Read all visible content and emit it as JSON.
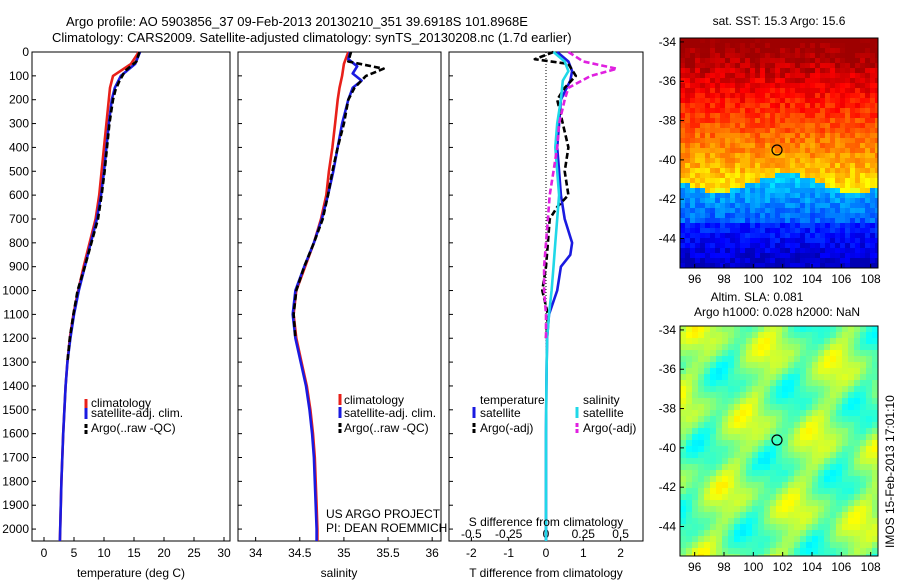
{
  "header": {
    "line1": "Argo profile: AO 5903856_37 09-Feb-2013 20130210_351 39.6918S 101.8968E",
    "line2": "Climatology: CARS2009. Satellite-adjusted climatology: synTS_20130208.nc (1.7d earlier)"
  },
  "colors": {
    "climatology": "#e8201a",
    "satellite_temp": "#1a1ae0",
    "argo": "#000000",
    "satellite_sal": "#20d8e8",
    "argo_sal": "#e020e0"
  },
  "credits": {
    "line1": "US ARGO PROJECT",
    "line2": "PI: DEAN ROEMMICH"
  },
  "sst_map": {
    "title": "sat. SST: 15.3  Argo: 15.6"
  },
  "sla_map": {
    "title1": "Altim. SLA: 0.081",
    "title2": "Argo h1000: 0.028 h2000: NaN"
  },
  "watermark": "IMOS 15-Feb-2013 17:01:10",
  "chart_data": [
    {
      "type": "line",
      "xlabel": "temperature (deg C)",
      "ylabel": "",
      "xlim": [
        -2,
        31
      ],
      "ylim": [
        2050,
        0
      ],
      "xticks": [
        0,
        5,
        10,
        15,
        20,
        25,
        30
      ],
      "yticks": [
        0,
        100,
        200,
        300,
        400,
        500,
        600,
        700,
        800,
        900,
        1000,
        1100,
        1200,
        1300,
        1400,
        1500,
        1600,
        1700,
        1800,
        1900,
        2000
      ],
      "legend": {
        "position": "lower-middle",
        "entries": [
          "climatology",
          "satellite-adj. clim.",
          "Argo(..raw -QC)"
        ]
      },
      "series": [
        {
          "name": "climatology",
          "color": "#e8201a",
          "style": "solid",
          "y": [
            0,
            50,
            100,
            150,
            200,
            300,
            400,
            500,
            600,
            700,
            800,
            900,
            1000,
            1100,
            1200,
            1300,
            1400,
            1500,
            1600,
            1700,
            1800,
            1900,
            2000,
            2050
          ],
          "x": [
            15.8,
            14.5,
            11.5,
            11.0,
            10.8,
            10.4,
            10.0,
            9.6,
            9.2,
            8.6,
            7.6,
            6.6,
            5.7,
            4.9,
            4.3,
            3.9,
            3.6,
            3.4,
            3.2,
            3.05,
            2.9,
            2.8,
            2.7,
            2.65
          ]
        },
        {
          "name": "satellite-adj. clim.",
          "color": "#1a1ae0",
          "style": "solid",
          "y": [
            0,
            50,
            100,
            150,
            200,
            300,
            400,
            500,
            600,
            700,
            800,
            900,
            1000,
            1100,
            1200,
            1300,
            1400,
            1500,
            1600,
            1700,
            1800,
            1900,
            2000,
            2050
          ],
          "x": [
            16.0,
            15.2,
            12.8,
            11.8,
            11.3,
            10.8,
            10.4,
            10.0,
            9.5,
            8.8,
            7.8,
            6.8,
            5.8,
            5.0,
            4.4,
            3.9,
            3.6,
            3.4,
            3.2,
            3.05,
            2.9,
            2.8,
            2.7,
            2.65
          ]
        },
        {
          "name": "Argo(..raw -QC)",
          "color": "#000000",
          "style": "dashed",
          "y": [
            0,
            40,
            80,
            120,
            160,
            200,
            300,
            400,
            500,
            600,
            700,
            800,
            900,
            1000,
            1100,
            1200,
            1300
          ],
          "x": [
            15.9,
            15.4,
            13.5,
            12.6,
            11.9,
            11.5,
            10.9,
            10.5,
            10.1,
            9.6,
            9.0,
            7.9,
            6.8,
            5.6,
            4.9,
            4.3,
            3.9
          ]
        }
      ]
    },
    {
      "type": "line",
      "xlabel": "salinity",
      "ylabel": "",
      "xlim": [
        33.8,
        36.1
      ],
      "ylim": [
        2050,
        0
      ],
      "xticks": [
        34,
        34.5,
        35,
        35.5,
        36
      ],
      "legend": {
        "position": "lower-right",
        "entries": [
          "climatology",
          "satellite-adj. clim.",
          "Argo(..raw -QC)"
        ]
      },
      "series": [
        {
          "name": "climatology",
          "color": "#e8201a",
          "style": "solid",
          "y": [
            0,
            50,
            100,
            150,
            200,
            300,
            400,
            500,
            600,
            700,
            800,
            900,
            1000,
            1100,
            1200,
            1300,
            1400,
            1500,
            1600,
            1700,
            1800,
            1900,
            2000,
            2050
          ],
          "x": [
            35.05,
            35.0,
            34.98,
            34.95,
            34.93,
            34.9,
            34.87,
            34.83,
            34.8,
            34.74,
            34.66,
            34.56,
            34.46,
            34.43,
            34.46,
            34.52,
            34.58,
            34.62,
            34.65,
            34.67,
            34.68,
            34.69,
            34.7,
            34.7
          ]
        },
        {
          "name": "satellite-adj. clim.",
          "color": "#1a1ae0",
          "style": "solid",
          "y": [
            0,
            30,
            60,
            90,
            120,
            150,
            200,
            300,
            400,
            500,
            600,
            700,
            800,
            900,
            1000,
            1100,
            1200,
            1300,
            1400,
            1500,
            1600,
            1700,
            1800,
            1900,
            2000,
            2050
          ],
          "x": [
            35.07,
            35.05,
            35.15,
            35.1,
            35.2,
            35.1,
            35.05,
            34.98,
            34.93,
            34.88,
            34.82,
            34.75,
            34.66,
            34.55,
            34.45,
            34.42,
            34.45,
            34.51,
            34.57,
            34.61,
            34.64,
            34.66,
            34.67,
            34.68,
            34.69,
            34.69
          ]
        },
        {
          "name": "Argo(..raw -QC)",
          "color": "#000000",
          "style": "dashed",
          "y": [
            0,
            40,
            70,
            100,
            150,
            200,
            300,
            400,
            500,
            600,
            700,
            800,
            900,
            1000,
            1100,
            1200
          ],
          "x": [
            35.08,
            35.05,
            35.45,
            35.25,
            35.12,
            35.05,
            35.0,
            34.93,
            34.87,
            34.82,
            34.76,
            34.66,
            34.55,
            34.46,
            34.43,
            34.45
          ]
        }
      ]
    },
    {
      "type": "line",
      "xlabel": "T difference from climatology",
      "secondary_xlabel": "S difference from climatology",
      "xlim": [
        -2.6,
        2.6
      ],
      "ylim": [
        2050,
        0
      ],
      "xticks": [
        -2,
        -1,
        0,
        1,
        2
      ],
      "secondary_xticks": [
        "-0.5",
        "-0.25",
        "0",
        "0.25",
        "0.5"
      ],
      "legend": {
        "position": "lower-middle",
        "groups": [
          {
            "title": "temperature",
            "entries": [
              "satellite",
              "Argo(-adj)"
            ]
          },
          {
            "title": "salinity",
            "entries": [
              "satellite",
              "Argo(-adj)"
            ]
          }
        ]
      },
      "series": [
        {
          "name": "temperature satellite",
          "color": "#1a1ae0",
          "style": "solid",
          "y": [
            0,
            40,
            80,
            120,
            200,
            300,
            400,
            500,
            600,
            700,
            800,
            850,
            900,
            1000,
            1100,
            1200,
            1300,
            1400,
            1600,
            1800,
            2000,
            2050
          ],
          "x": [
            0.3,
            0.6,
            0.7,
            0.65,
            0.4,
            0.35,
            0.3,
            0.35,
            0.4,
            0.5,
            0.7,
            0.65,
            0.4,
            0.3,
            0.08,
            0.03,
            0.02,
            0.01,
            0.0,
            0.0,
            0.0,
            0.0
          ]
        },
        {
          "name": "temperature Argo(-adj)",
          "color": "#000000",
          "style": "dashed",
          "y": [
            0,
            30,
            50,
            100,
            150,
            200,
            300,
            400,
            500,
            600,
            650,
            700,
            800,
            900,
            1000,
            1100,
            1200
          ],
          "x": [
            0.2,
            -0.3,
            0.6,
            0.8,
            0.5,
            0.3,
            0.45,
            0.6,
            0.5,
            0.6,
            0.3,
            0.1,
            0.05,
            0.0,
            -0.1,
            0.05,
            0.0
          ]
        },
        {
          "name": "salinity satellite",
          "color": "#20d8e8",
          "style": "solid",
          "y": [
            0,
            40,
            80,
            120,
            200,
            300,
            400,
            500,
            600,
            700,
            800,
            900,
            1000,
            1100,
            1200,
            1300,
            1400,
            1600,
            1800,
            2000,
            2050
          ],
          "x": [
            0.2,
            0.5,
            0.6,
            0.45,
            0.4,
            0.3,
            0.25,
            0.3,
            0.35,
            0.3,
            0.25,
            0.2,
            0.15,
            0.08,
            0.03,
            0.02,
            0.01,
            0.0,
            0.0,
            0.0,
            0.0
          ]
        },
        {
          "name": "salinity Argo(-adj)",
          "color": "#e020e0",
          "style": "dashed",
          "y": [
            0,
            40,
            70,
            100,
            150,
            200,
            300,
            400,
            500,
            600,
            700,
            800,
            900,
            1000,
            1100,
            1200
          ],
          "x": [
            0.6,
            1.0,
            1.9,
            1.2,
            0.6,
            0.5,
            0.35,
            0.3,
            0.2,
            0.1,
            0.05,
            0.0,
            -0.05,
            -0.05,
            0.0,
            0.0
          ]
        }
      ]
    },
    {
      "type": "heatmap",
      "title": "sat. SST: 15.3  Argo: 15.6",
      "xlim": [
        95,
        108.5
      ],
      "ylim": [
        -45.5,
        -33.8
      ],
      "xticks": [
        96,
        98,
        100,
        102,
        104,
        106,
        108
      ],
      "yticks": [
        -34,
        -36,
        -38,
        -40,
        -42,
        -44
      ],
      "marker": {
        "lon": 101.9,
        "lat": -39.7
      }
    },
    {
      "type": "heatmap",
      "title": "Altim. SLA: 0.081",
      "xlim": [
        95,
        108.5
      ],
      "ylim": [
        -45.5,
        -33.8
      ],
      "xticks": [
        96,
        98,
        100,
        102,
        104,
        106,
        108
      ],
      "yticks": [
        -34,
        -36,
        -38,
        -40,
        -42,
        -44
      ],
      "marker": {
        "lon": 101.9,
        "lat": -39.7
      }
    }
  ]
}
